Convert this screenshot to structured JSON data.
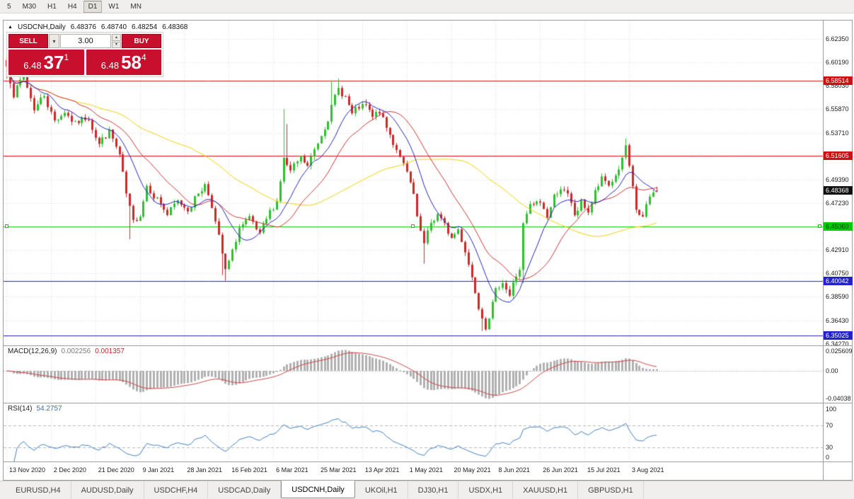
{
  "toolbar": {
    "periods": [
      {
        "label": "5",
        "active": false
      },
      {
        "label": "M30",
        "active": false
      },
      {
        "label": "H1",
        "active": false
      },
      {
        "label": "H4",
        "active": false
      },
      {
        "label": "D1",
        "active": true
      },
      {
        "label": "W1",
        "active": false
      },
      {
        "label": "MN",
        "active": false
      }
    ]
  },
  "icons": {
    "chevron_down": "▾",
    "spinner_up": "▴",
    "spinner_down": "▾",
    "symbol_marker": "▲"
  },
  "chart_info": {
    "symbol": "USDCNH,Daily",
    "open": "6.48376",
    "high": "6.48740",
    "low": "6.48254",
    "close": "6.48368"
  },
  "trade_panel": {
    "sell_label": "SELL",
    "buy_label": "BUY",
    "volume": "3.00",
    "sell_price": {
      "small": "6.48",
      "big": "37",
      "sup": "1"
    },
    "buy_price": {
      "small": "6.48",
      "big": "58",
      "sup": "4"
    }
  },
  "price_axis": {
    "range": {
      "top": 6.6405,
      "bottom": 6.3412
    },
    "ticks": [
      "6.62350",
      "6.60190",
      "6.58030",
      "6.55870",
      "6.53710",
      "6.51550",
      "6.49390",
      "6.47230",
      "6.45070",
      "6.42910",
      "6.40750",
      "6.38590",
      "6.36430",
      "6.34270"
    ]
  },
  "hlines": [
    {
      "price": 6.58514,
      "label": "6.58514",
      "color": "#d01818",
      "badge_bg": "#cc1111",
      "badge_fg": "#ffffff",
      "selected": false
    },
    {
      "price": 6.51605,
      "label": "6.51605",
      "color": "#d01818",
      "badge_bg": "#cc1111",
      "badge_fg": "#ffffff",
      "selected": false
    },
    {
      "price": 6.4506,
      "label": "6.45060",
      "color": "#00cc00",
      "badge_bg": "#00cc00",
      "badge_fg": "#003300",
      "selected": true
    },
    {
      "price": 6.40042,
      "label": "6.40042",
      "color": "#2222cc",
      "badge_bg": "#2222cc",
      "badge_fg": "#ffffff",
      "selected": false
    },
    {
      "price": 6.35025,
      "label": "6.35025",
      "color": "#2222cc",
      "badge_bg": "#2222cc",
      "badge_fg": "#ffffff",
      "selected": false
    }
  ],
  "current_price": {
    "value": 6.48368,
    "label": "6.48368",
    "badge_bg": "#101010",
    "badge_fg": "#ffffff"
  },
  "macd": {
    "label": "MACD(12,26,9)",
    "value1": "0.002256",
    "value2": "0.001357",
    "axis_labels": [
      "0.025609",
      "0.00",
      "-0.04038"
    ],
    "params": {
      "fast": 12,
      "slow": 26,
      "signal": 9
    }
  },
  "rsi": {
    "label": "RSI(14)",
    "value": "54.2757",
    "axis_labels": [
      "100",
      "70",
      "30",
      "0"
    ],
    "levels": [
      70,
      30
    ],
    "period": 14
  },
  "time_axis": {
    "labels": [
      [
        0,
        "13 Nov 2020"
      ],
      [
        13,
        "2 Dec 2020"
      ],
      [
        26,
        "21 Dec 2020"
      ],
      [
        39,
        "9 Jan 2021"
      ],
      [
        52,
        "28 Jan 2021"
      ],
      [
        65,
        "16 Feb 2021"
      ],
      [
        78,
        "6 Mar 2021"
      ],
      [
        91,
        "25 Mar 2021"
      ],
      [
        104,
        "13 Apr 2021"
      ],
      [
        117,
        "1 May 2021"
      ],
      [
        130,
        "20 May 2021"
      ],
      [
        143,
        "8 Jun 2021"
      ],
      [
        156,
        "26 Jun 2021"
      ],
      [
        169,
        "15 Jul 2021"
      ],
      [
        182,
        "3 Aug 2021"
      ]
    ]
  },
  "tabs": [
    {
      "label": "EURUSD,H4",
      "active": false
    },
    {
      "label": "AUDUSD,Daily",
      "active": false
    },
    {
      "label": "USDCHF,H4",
      "active": false
    },
    {
      "label": "USDCAD,Daily",
      "active": false
    },
    {
      "label": "USDCNH,Daily",
      "active": true
    },
    {
      "label": "UKOil,H1",
      "active": false
    },
    {
      "label": "DJ30,H1",
      "active": false
    },
    {
      "label": "USDX,H1",
      "active": false
    },
    {
      "label": "XAUUSD,H1",
      "active": false
    },
    {
      "label": "GBPUSD,H1",
      "active": false
    }
  ],
  "colors": {
    "up": "#2fbf2f",
    "down": "#cc2929",
    "ma_blue": "#2424b8",
    "ma_red": "#cc3333",
    "ma_yellow": "#f0d000",
    "macd_hist": "#b0b0b0",
    "macd_signal": "#cc4444",
    "rsi_line": "#3f7fc1"
  },
  "chart_data": {
    "type": "candlestick",
    "symbol": "USDCNH",
    "timeframe": "Daily",
    "candle_count": 191,
    "seed": 7,
    "first_open": 6.604,
    "noise": 0.008,
    "wick": 0.0035,
    "ma_periods": {
      "blue": 10,
      "red": 21,
      "yellow": 55
    },
    "close_anchors": [
      [
        0,
        6.598
      ],
      [
        2,
        6.575
      ],
      [
        5,
        6.588
      ],
      [
        8,
        6.56
      ],
      [
        11,
        6.572
      ],
      [
        14,
        6.548
      ],
      [
        17,
        6.558
      ],
      [
        20,
        6.545
      ],
      [
        24,
        6.552
      ],
      [
        27,
        6.528
      ],
      [
        30,
        6.538
      ],
      [
        33,
        6.515
      ],
      [
        35,
        6.478
      ],
      [
        37,
        6.452
      ],
      [
        39,
        6.463
      ],
      [
        41,
        6.49
      ],
      [
        44,
        6.478
      ],
      [
        47,
        6.462
      ],
      [
        50,
        6.472
      ],
      [
        53,
        6.468
      ],
      [
        56,
        6.482
      ],
      [
        58,
        6.49
      ],
      [
        60,
        6.472
      ],
      [
        62,
        6.44
      ],
      [
        64,
        6.408
      ],
      [
        66,
        6.425
      ],
      [
        68,
        6.45
      ],
      [
        71,
        6.455
      ],
      [
        74,
        6.44
      ],
      [
        77,
        6.462
      ],
      [
        79,
        6.475
      ],
      [
        81,
        6.513
      ],
      [
        83,
        6.5
      ],
      [
        86,
        6.512
      ],
      [
        88,
        6.505
      ],
      [
        91,
        6.528
      ],
      [
        93,
        6.545
      ],
      [
        95,
        6.562
      ],
      [
        97,
        6.576
      ],
      [
        99,
        6.571
      ],
      [
        101,
        6.553
      ],
      [
        103,
        6.559
      ],
      [
        105,
        6.56
      ],
      [
        107,
        6.549
      ],
      [
        109,
        6.556
      ],
      [
        111,
        6.54
      ],
      [
        113,
        6.528
      ],
      [
        115,
        6.518
      ],
      [
        117,
        6.498
      ],
      [
        119,
        6.478
      ],
      [
        120,
        6.455
      ],
      [
        122,
        6.432
      ],
      [
        124,
        6.452
      ],
      [
        126,
        6.462
      ],
      [
        128,
        6.45
      ],
      [
        130,
        6.44
      ],
      [
        132,
        6.448
      ],
      [
        134,
        6.43
      ],
      [
        136,
        6.405
      ],
      [
        138,
        6.38
      ],
      [
        140,
        6.362
      ],
      [
        141,
        6.372
      ],
      [
        143,
        6.39
      ],
      [
        145,
        6.402
      ],
      [
        147,
        6.388
      ],
      [
        148,
        6.398
      ],
      [
        150,
        6.412
      ],
      [
        151,
        6.452
      ],
      [
        153,
        6.468
      ],
      [
        156,
        6.472
      ],
      [
        158,
        6.46
      ],
      [
        160,
        6.478
      ],
      [
        162,
        6.488
      ],
      [
        164,
        6.478
      ],
      [
        166,
        6.46
      ],
      [
        168,
        6.472
      ],
      [
        170,
        6.465
      ],
      [
        172,
        6.482
      ],
      [
        174,
        6.493
      ],
      [
        176,
        6.488
      ],
      [
        178,
        6.498
      ],
      [
        180,
        6.512
      ],
      [
        181,
        6.524
      ],
      [
        182,
        6.502
      ],
      [
        184,
        6.464
      ],
      [
        186,
        6.458
      ],
      [
        188,
        6.476
      ],
      [
        190,
        6.48368
      ]
    ],
    "extremes": [
      {
        "i": 0,
        "h": 6.6075,
        "l": 6.587
      },
      {
        "i": 1,
        "h": 6.602,
        "l": 6.578
      },
      {
        "i": 36,
        "l": 6.439
      },
      {
        "i": 63,
        "l": 6.406
      },
      {
        "i": 64,
        "l": 6.4008
      },
      {
        "i": 81,
        "h": 6.559
      },
      {
        "i": 82,
        "h": 6.545
      },
      {
        "i": 95,
        "h": 6.585
      },
      {
        "i": 97,
        "h": 6.587
      },
      {
        "i": 105,
        "h": 6.568
      },
      {
        "i": 122,
        "l": 6.4165
      },
      {
        "i": 139,
        "l": 6.3545
      },
      {
        "i": 140,
        "l": 6.3555
      },
      {
        "i": 151,
        "l": 6.3985
      },
      {
        "i": 181,
        "h": 6.532
      }
    ],
    "last_candle": {
      "o": 6.48376,
      "h": 6.4874,
      "l": 6.48254,
      "c": 6.48368
    }
  }
}
